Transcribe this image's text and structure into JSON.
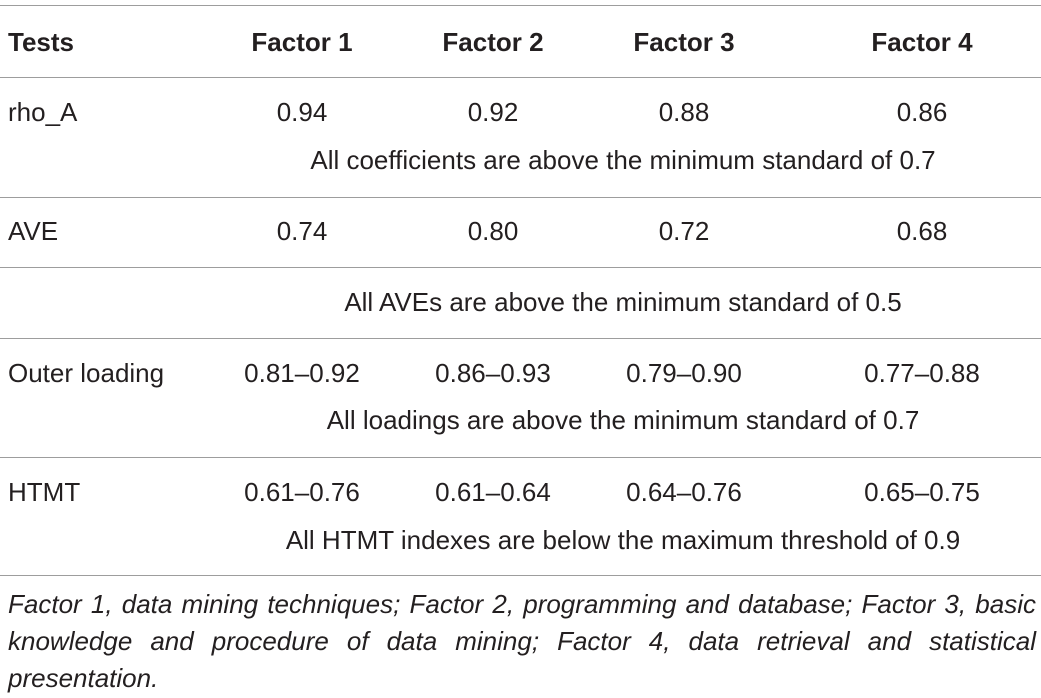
{
  "table": {
    "header": [
      "Tests",
      "Factor 1",
      "Factor 2",
      "Factor 3",
      "Factor 4"
    ],
    "rows": [
      {
        "cells": [
          "rho_A",
          "0.94",
          "0.92",
          "0.88",
          "0.86"
        ],
        "note": "All coefficients are above the minimum standard of 0.7"
      },
      {
        "cells": [
          "AVE",
          "0.74",
          "0.80",
          "0.72",
          "0.68"
        ],
        "note": "All AVEs are above the minimum standard of 0.5"
      },
      {
        "cells": [
          "Outer loading",
          "0.81–0.92",
          "0.86–0.93",
          "0.79–0.90",
          "0.77–0.88"
        ],
        "note": "All loadings are above the minimum standard of 0.7"
      },
      {
        "cells": [
          "HTMT",
          "0.61–0.76",
          "0.61–0.64",
          "0.64–0.76",
          "0.65–0.75"
        ],
        "note": "All HTMT indexes are below the maximum threshold of 0.9"
      }
    ],
    "footnote": "Factor 1, data mining techniques; Factor 2, programming and database; Factor 3, basic knowledge and procedure of data mining; Factor 4, data retrieval and statistical presentation."
  }
}
